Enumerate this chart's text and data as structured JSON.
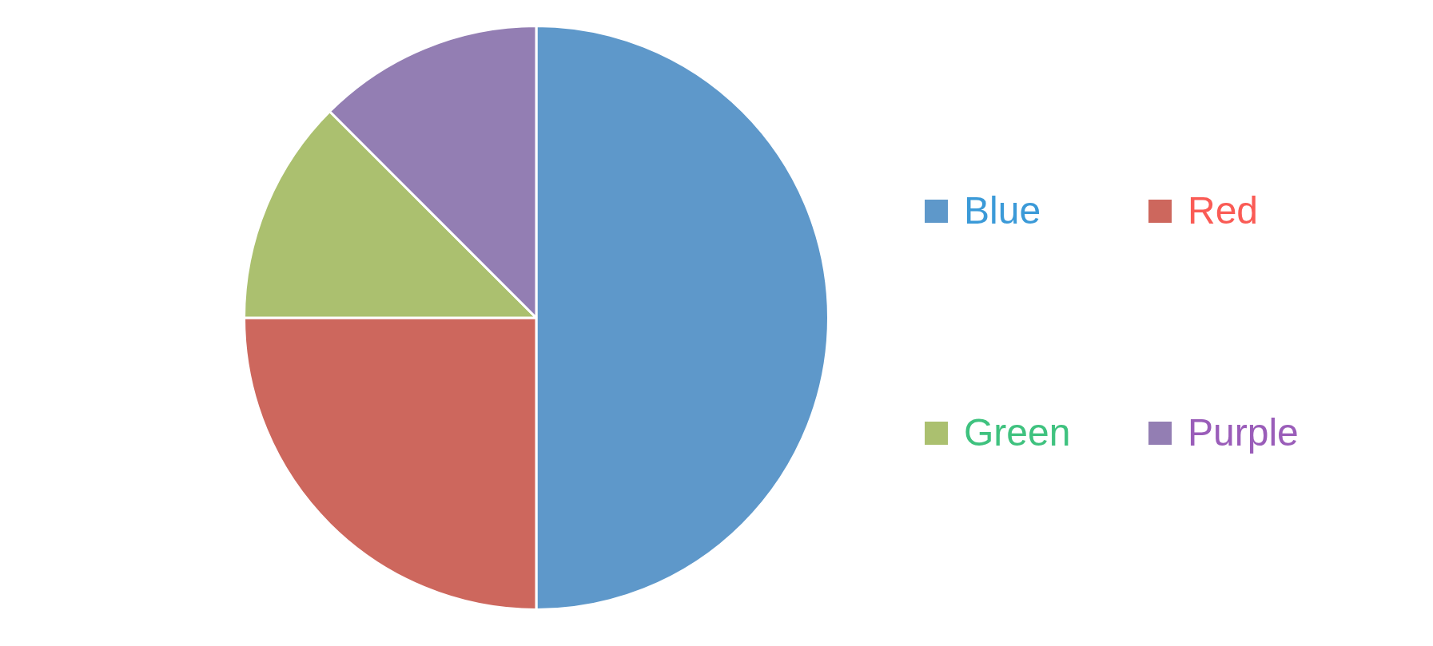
{
  "chart_data": {
    "type": "pie",
    "categories": [
      "Blue",
      "Red",
      "Green",
      "Purple"
    ],
    "values": [
      50,
      25,
      12.5,
      12.5
    ],
    "colors": [
      "#5e98ca",
      "#cd675d",
      "#abc06f",
      "#937eb3"
    ],
    "legend": "right"
  }
}
